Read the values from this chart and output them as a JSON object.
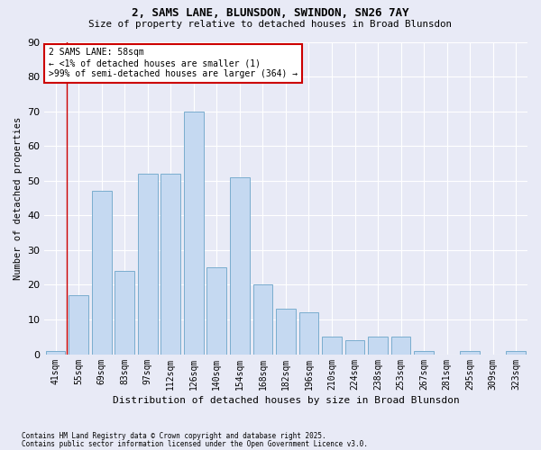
{
  "title1": "2, SAMS LANE, BLUNSDON, SWINDON, SN26 7AY",
  "title2": "Size of property relative to detached houses in Broad Blunsdon",
  "xlabel": "Distribution of detached houses by size in Broad Blunsdon",
  "ylabel": "Number of detached properties",
  "categories": [
    "41sqm",
    "55sqm",
    "69sqm",
    "83sqm",
    "97sqm",
    "112sqm",
    "126sqm",
    "140sqm",
    "154sqm",
    "168sqm",
    "182sqm",
    "196sqm",
    "210sqm",
    "224sqm",
    "238sqm",
    "253sqm",
    "267sqm",
    "281sqm",
    "295sqm",
    "309sqm",
    "323sqm"
  ],
  "values": [
    1,
    17,
    47,
    24,
    52,
    52,
    70,
    25,
    51,
    20,
    13,
    12,
    5,
    4,
    5,
    5,
    1,
    0,
    1,
    0,
    1
  ],
  "bar_color": "#c5d9f1",
  "bar_edge_color": "#7aadce",
  "vline_color": "#cc0000",
  "vline_x": 0.5,
  "annotation_text": "2 SAMS LANE: 58sqm\n← <1% of detached houses are smaller (1)\n>99% of semi-detached houses are larger (364) →",
  "annotation_box_color": "#ffffff",
  "annotation_box_edge": "#cc0000",
  "ylim": [
    0,
    90
  ],
  "yticks": [
    0,
    10,
    20,
    30,
    40,
    50,
    60,
    70,
    80,
    90
  ],
  "bg_color": "#e8eaf6",
  "plot_bg_color": "#e8eaf6",
  "grid_color": "#ffffff",
  "footer1": "Contains HM Land Registry data © Crown copyright and database right 2025.",
  "footer2": "Contains public sector information licensed under the Open Government Licence v3.0."
}
